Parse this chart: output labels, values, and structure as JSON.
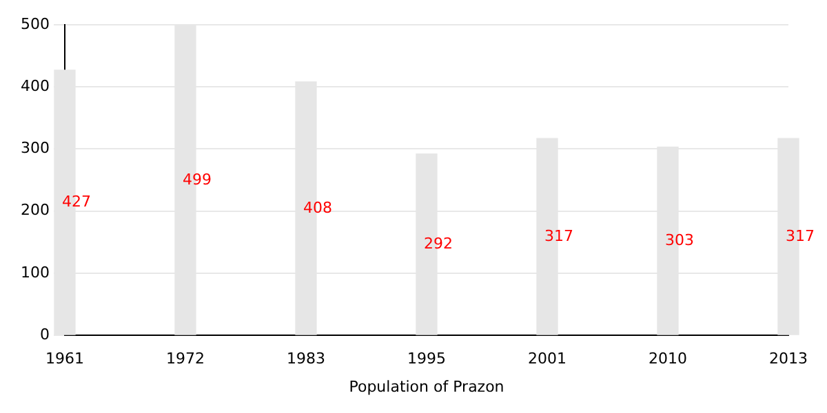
{
  "chart_data": {
    "type": "bar",
    "xlabel": "Population of Prazon",
    "categories": [
      "1961",
      "1972",
      "1983",
      "1995",
      "2001",
      "2010",
      "2013"
    ],
    "values": [
      427,
      499,
      408,
      292,
      317,
      303,
      317
    ],
    "color": "#e6e6e6",
    "ylim": [
      0,
      500
    ],
    "yticks": [
      0,
      100,
      200,
      300,
      400,
      500
    ],
    "grid": "y",
    "data_labels": true
  }
}
